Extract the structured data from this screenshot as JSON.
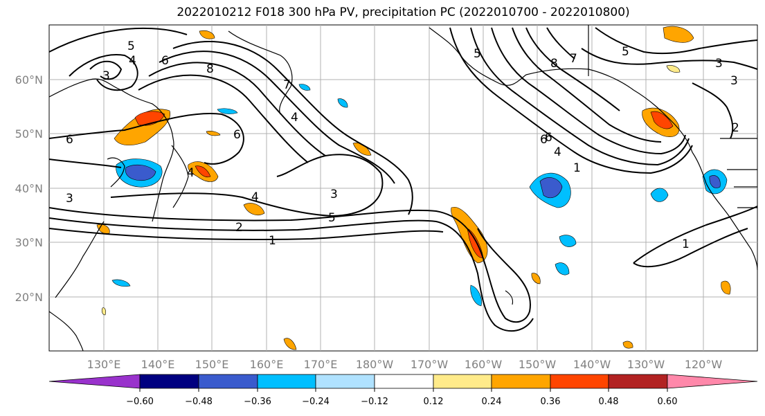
{
  "title": "2022010212 F018 300 hPa PV, precipitation PC (2022010700 - 2022010800)",
  "lon_labels": [
    "130°E",
    "140°E",
    "150°E",
    "160°E",
    "170°E",
    "180°W",
    "170°W",
    "160°W",
    "150°W",
    "140°W",
    "130°W",
    "120°W"
  ],
  "lat_labels": [
    "60°N",
    "50°N",
    "40°N",
    "30°N",
    "20°N"
  ],
  "contour_labels": [
    "3",
    "5",
    "4",
    "6",
    "8",
    "7",
    "6",
    "4",
    "6",
    "4",
    "3",
    "4",
    "3",
    "2",
    "1",
    "5",
    "6",
    "5",
    "8",
    "7",
    "6",
    "4",
    "1",
    "5",
    "3",
    "3",
    "2",
    "1"
  ],
  "colorbar": {
    "ticks": [
      "−0.60",
      "−0.48",
      "−0.36",
      "−0.24",
      "−0.12",
      "0.12",
      "0.24",
      "0.36",
      "0.48",
      "0.60"
    ],
    "colors": [
      "#9932cc",
      "#000080",
      "#3a5bcd",
      "#00bfff",
      "#b0e2ff",
      "#ffffff",
      "#ffeb8a",
      "#ffa500",
      "#ff4500",
      "#b22222",
      "#ff88aa"
    ]
  }
}
